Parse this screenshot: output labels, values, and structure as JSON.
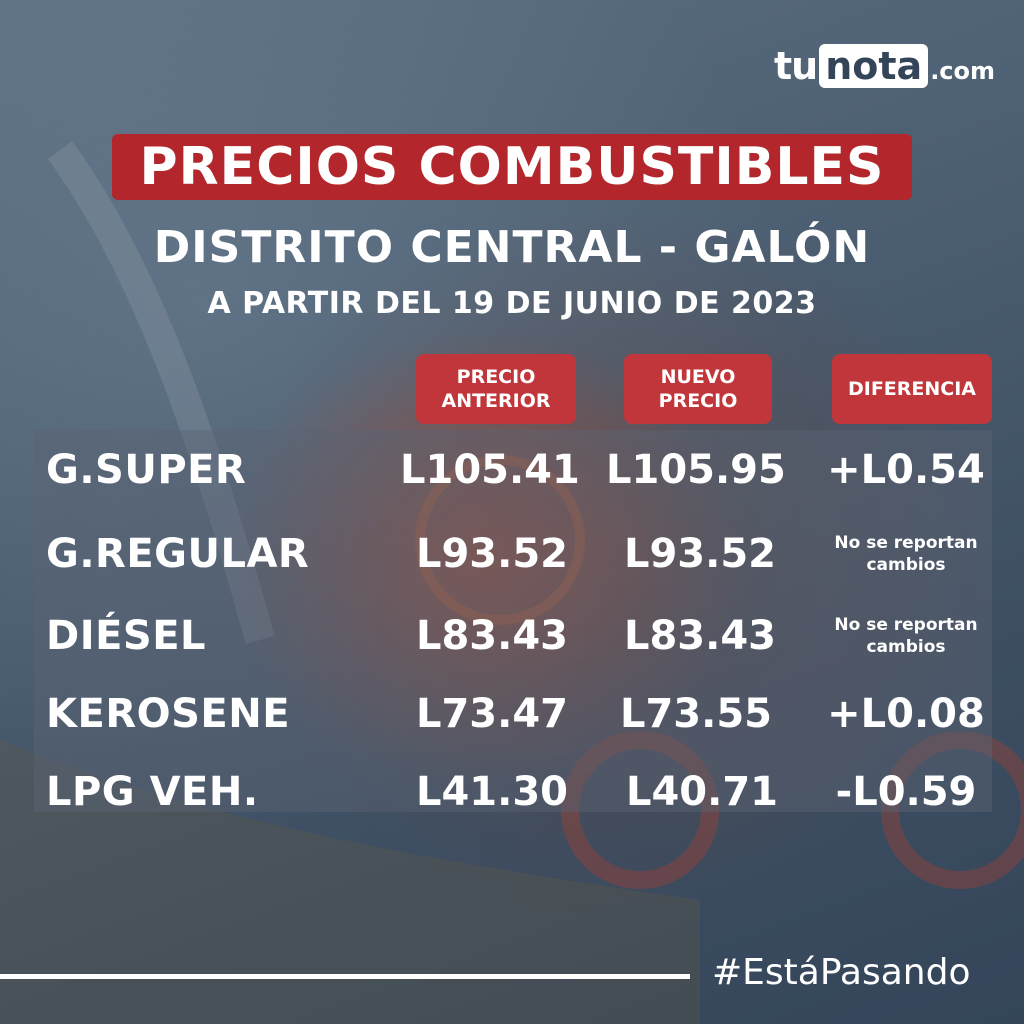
{
  "logo": {
    "tu": "tu",
    "nota": "nota",
    "com": ".com"
  },
  "title": "PRECIOS COMBUSTIBLES",
  "subtitle": "DISTRITO CENTRAL - GALÓN",
  "date_line": "A PARTIR DEL 19 DE JUNIO DE 2023",
  "headers": {
    "previous": "PRECIO ANTERIOR",
    "new": "NUEVO PRECIO",
    "difference": "DIFERENCIA"
  },
  "rows": [
    {
      "name": "G.SUPER",
      "previous": "L105.41",
      "new": "L105.95",
      "difference": "+L0.54"
    },
    {
      "name": "G.REGULAR",
      "previous": "L93.52",
      "new": "L93.52",
      "difference": "No se reportan cambios"
    },
    {
      "name": "DIÉSEL",
      "previous": "L83.43",
      "new": "L83.43",
      "difference": "No se reportan cambios"
    },
    {
      "name": "KEROSENE",
      "previous": "L73.47",
      "new": "L73.55",
      "difference": "+L0.08"
    },
    {
      "name": "LPG VEH.",
      "previous": "L41.30",
      "new": "L40.71",
      "difference": "-L0.59"
    }
  ],
  "hashtag": "#EstáPasando",
  "colors": {
    "accent_red": "#b3262c",
    "header_red": "#c0363a",
    "background": "#4b5d70"
  }
}
